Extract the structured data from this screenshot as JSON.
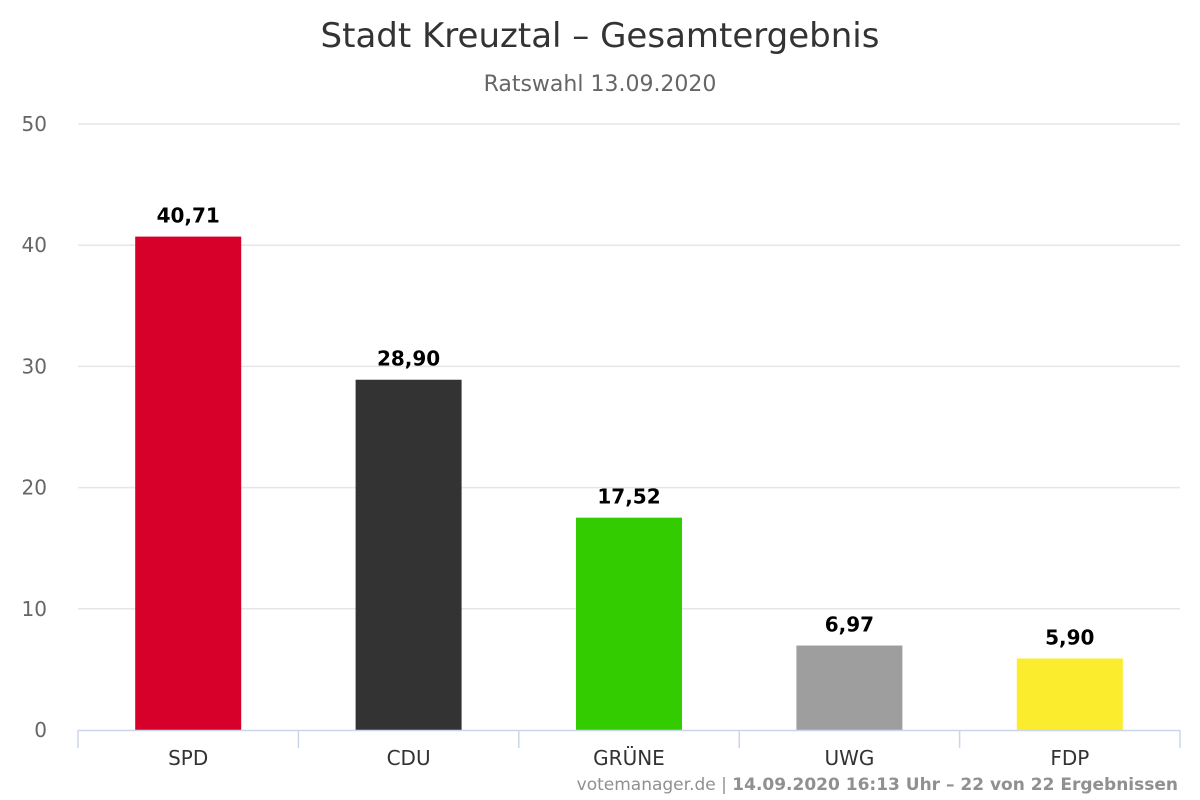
{
  "chart_data": {
    "type": "bar",
    "title": "Stadt Kreuztal – Gesamtergebnis",
    "subtitle": "Ratswahl 13.09.2020",
    "categories": [
      "SPD",
      "CDU",
      "GRÜNE",
      "UWG",
      "FDP"
    ],
    "values": [
      40.71,
      28.9,
      17.52,
      6.97,
      5.9
    ],
    "value_labels": [
      "40,71",
      "28,90",
      "17,52",
      "6,97",
      "5,90"
    ],
    "colors": [
      "#d7002a",
      "#333333",
      "#33cc00",
      "#9e9e9e",
      "#fcec2e"
    ],
    "ylim": [
      0,
      50
    ],
    "yticks": [
      0,
      10,
      20,
      30,
      40,
      50
    ],
    "grid": true,
    "legend": "none",
    "xlabel": "",
    "ylabel": ""
  },
  "credits": {
    "source": "votemanager.de",
    "separator": " | ",
    "info": "14.09.2020 16:13 Uhr – 22 von 22 Ergebnissen"
  }
}
